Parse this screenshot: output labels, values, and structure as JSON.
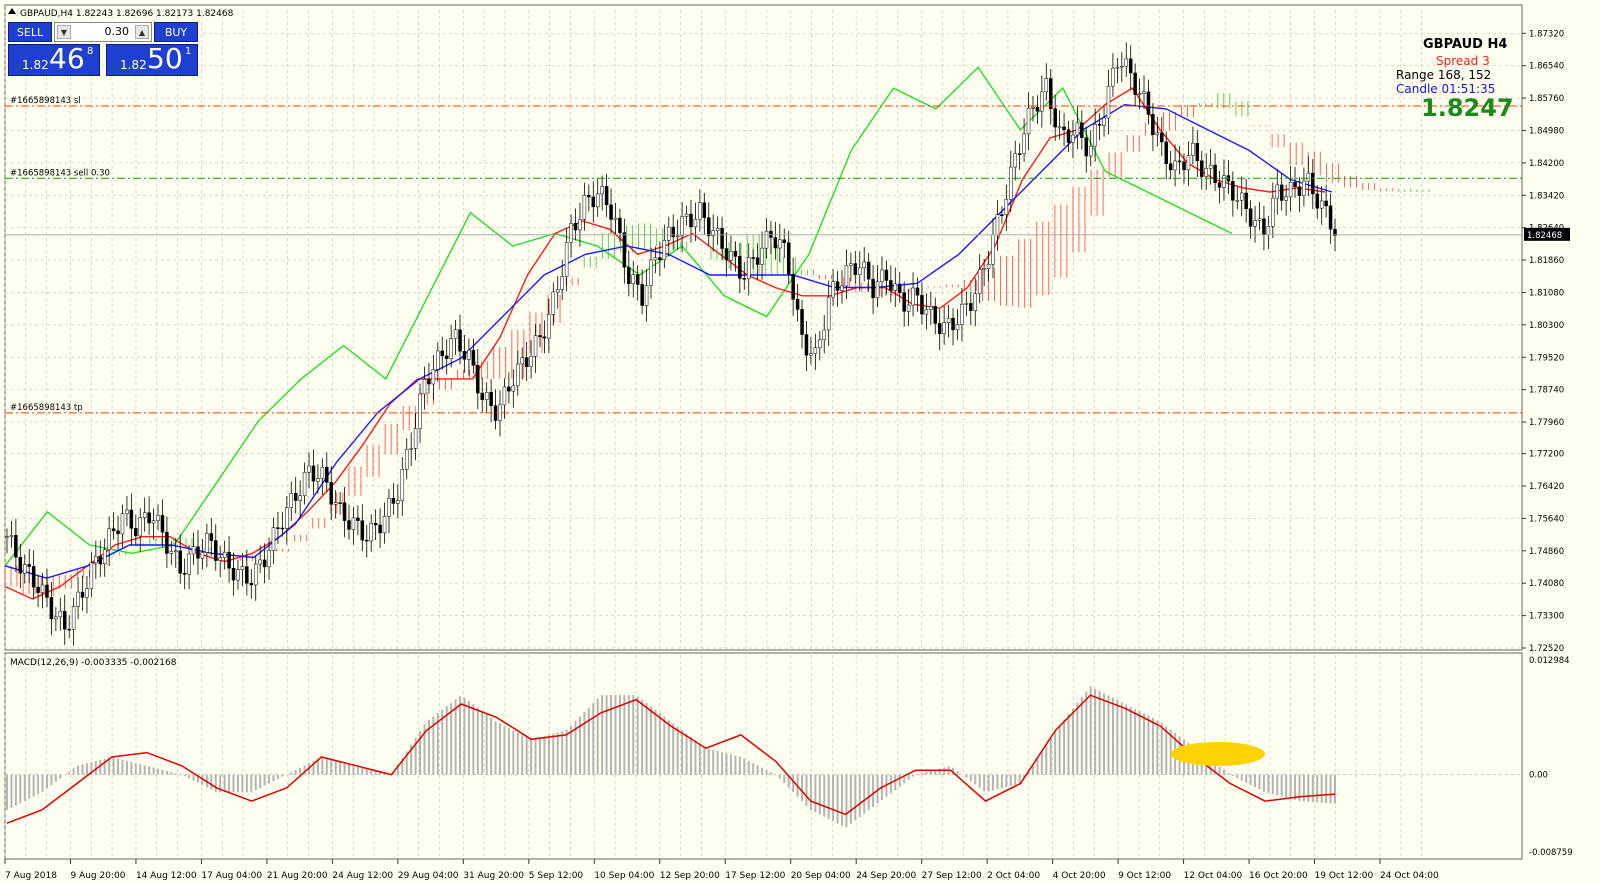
{
  "header": {
    "symbol_line": "GBPAUD,H4  1.82243 1.82696 1.82173 1.82468"
  },
  "one_click": {
    "sell_label": "SELL",
    "buy_label": "BUY",
    "lots": "0.30",
    "sell_price": {
      "small": "1.82",
      "big": "46",
      "sup": "8"
    },
    "buy_price": {
      "small": "1.82",
      "big": "50",
      "sup": "1"
    }
  },
  "info_panel": {
    "symbol": "GBPAUD   H4",
    "spread": "Spread  3",
    "range": "Range   168, 152",
    "candle": "Candle   01:51:35",
    "price": "1.8247"
  },
  "order_lines": [
    {
      "label": "#1665898143 sl",
      "price": 1.8557,
      "color": "#ff3b00"
    },
    {
      "label": "#1665898143 sell 0.30",
      "price": 1.8383,
      "color": "#00a000"
    },
    {
      "label": "#1665898143 tp",
      "price": 1.7818,
      "color": "#ff3b00"
    }
  ],
  "current_price": {
    "label": "1.82468",
    "value": 1.82468
  },
  "macd": {
    "label": "MACD(12,26,9) -0.003335 -0.002168"
  },
  "chart_data": [
    {
      "type": "candlestick",
      "title": "GBPAUD,H4",
      "ylim": [
        1.7252,
        1.8752
      ],
      "y_ticks": [
        "1.87320",
        "1.86540",
        "1.85760",
        "1.84980",
        "1.84200",
        "1.83420",
        "1.82640",
        "1.81860",
        "1.81080",
        "1.80300",
        "1.79520",
        "1.78740",
        "1.77960",
        "1.77200",
        "1.76420",
        "1.75640",
        "1.74860",
        "1.74080",
        "1.73300",
        "1.72520"
      ],
      "x_ticks": [
        "7 Aug 2018",
        "9 Aug 20:00",
        "14 Aug 12:00",
        "17 Aug 04:00",
        "21 Aug 20:00",
        "24 Aug 12:00",
        "29 Aug 04:00",
        "31 Aug 20:00",
        "5 Sep 12:00",
        "10 Sep 04:00",
        "12 Sep 20:00",
        "17 Sep 12:00",
        "20 Sep 04:00",
        "24 Sep 20:00",
        "27 Sep 12:00",
        "2 Oct 04:00",
        "4 Oct 20:00",
        "9 Oct 12:00",
        "12 Oct 04:00",
        "16 Oct 20:00",
        "19 Oct 12:00",
        "24 Oct 04:00"
      ],
      "price_path": [
        1.752,
        1.745,
        1.741,
        1.735,
        1.73,
        1.737,
        1.745,
        1.751,
        1.757,
        1.754,
        1.758,
        1.751,
        1.744,
        1.748,
        1.751,
        1.746,
        1.743,
        1.742,
        1.748,
        1.756,
        1.762,
        1.768,
        1.766,
        1.758,
        1.755,
        1.752,
        1.756,
        1.762,
        1.775,
        1.79,
        1.795,
        1.8,
        1.795,
        1.785,
        1.782,
        1.79,
        1.795,
        1.8,
        1.81,
        1.825,
        1.832,
        1.835,
        1.83,
        1.815,
        1.81,
        1.82,
        1.825,
        1.828,
        1.83,
        1.825,
        1.82,
        1.815,
        1.82,
        1.825,
        1.82,
        1.8,
        1.795,
        1.81,
        1.815,
        1.818,
        1.812,
        1.815,
        1.808,
        1.81,
        1.805,
        1.802,
        1.805,
        1.81,
        1.82,
        1.832,
        1.845,
        1.855,
        1.86,
        1.848,
        1.85,
        1.845,
        1.855,
        1.868,
        1.862,
        1.855,
        1.845,
        1.84,
        1.845,
        1.84,
        1.838,
        1.835,
        1.83,
        1.825,
        1.835,
        1.835,
        1.838,
        1.832,
        1.826
      ],
      "tenkan": [
        1.74,
        1.737,
        1.74,
        1.745,
        1.75,
        1.752,
        1.752,
        1.748,
        1.746,
        1.748,
        1.752,
        1.758,
        1.765,
        1.774,
        1.784,
        1.79,
        1.79,
        1.79,
        1.8,
        1.815,
        1.825,
        1.828,
        1.826,
        1.82,
        1.822,
        1.825,
        1.82,
        1.815,
        1.812,
        1.81,
        1.81,
        1.812,
        1.812,
        1.808,
        1.807,
        1.812,
        1.822,
        1.838,
        1.848,
        1.85,
        1.856,
        1.86,
        1.85,
        1.842,
        1.838,
        1.836,
        1.835,
        1.836,
        1.835
      ],
      "kijun": [
        1.745,
        1.742,
        1.745,
        1.75,
        1.75,
        1.748,
        1.747,
        1.755,
        1.77,
        1.782,
        1.79,
        1.795,
        1.805,
        1.815,
        1.82,
        1.822,
        1.82,
        1.815,
        1.815,
        1.815,
        1.812,
        1.812,
        1.813,
        1.82,
        1.83,
        1.84,
        1.85,
        1.856,
        1.855,
        1.85,
        1.845,
        1.838,
        1.835
      ],
      "chikou": [
        1.745,
        1.758,
        1.75,
        1.748,
        1.75,
        1.765,
        1.78,
        1.79,
        1.798,
        1.79,
        1.81,
        1.83,
        1.822,
        1.825,
        1.822,
        1.815,
        1.822,
        1.81,
        1.805,
        1.82,
        1.845,
        1.86,
        1.855,
        1.865,
        1.85,
        1.86,
        1.84,
        1.835,
        1.83,
        1.825
      ]
    },
    {
      "type": "bar",
      "title": "MACD(12,26,9)",
      "ylim": [
        -0.008759,
        0.012984
      ],
      "y_ticks": [
        "0.012984",
        "0.00",
        "-0.008759"
      ],
      "macd_values": [
        -0.004,
        -0.002,
        0.001,
        0.002,
        0.001,
        0.0,
        -0.002,
        -0.002,
        0.0,
        0.002,
        0.001,
        0.0,
        0.006,
        0.009,
        0.006,
        0.004,
        0.005,
        0.009,
        0.009,
        0.006,
        0.003,
        0.002,
        0.0,
        -0.004,
        -0.006,
        -0.003,
        0.0,
        0.001,
        -0.002,
        -0.001,
        0.005,
        0.01,
        0.008,
        0.006,
        0.003,
        0.0,
        -0.002,
        -0.003,
        -0.0033
      ],
      "signal_values": [
        -0.0055,
        -0.004,
        -0.001,
        0.002,
        0.0025,
        0.001,
        -0.0015,
        -0.003,
        -0.0015,
        0.002,
        0.001,
        0.0,
        0.005,
        0.008,
        0.0065,
        0.004,
        0.0045,
        0.007,
        0.0085,
        0.0055,
        0.003,
        0.0045,
        0.0015,
        -0.003,
        -0.0045,
        -0.0015,
        0.0005,
        0.0005,
        -0.003,
        -0.001,
        0.005,
        0.009,
        0.0075,
        0.0055,
        0.002,
        -0.001,
        -0.003,
        -0.0025,
        -0.0022
      ]
    }
  ]
}
